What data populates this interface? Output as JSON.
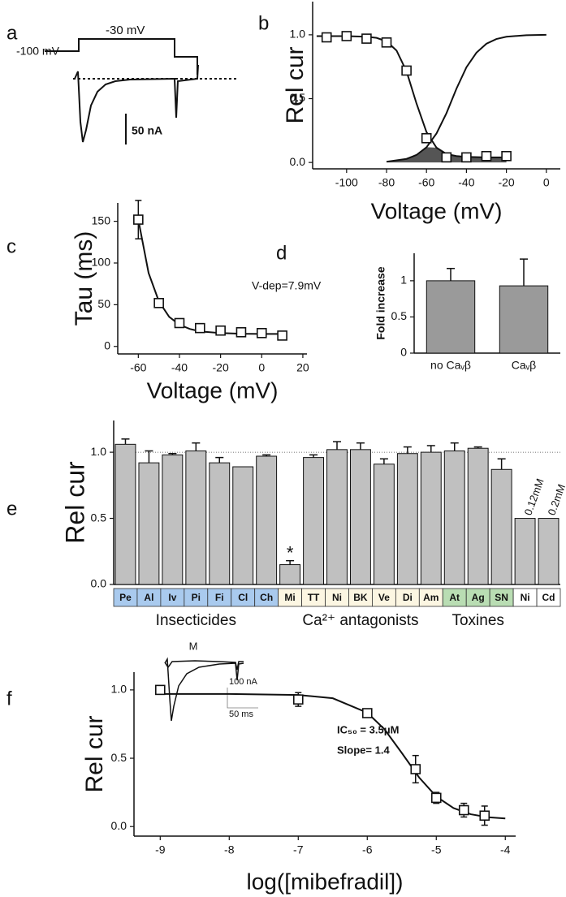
{
  "chart_data": [
    {
      "type": "trace",
      "panel": "a",
      "annotations": [
        "-100 mV",
        "-30 mV",
        "50 nA"
      ]
    },
    {
      "type": "scatter",
      "panel": "b",
      "ylabel": "Rel cur",
      "xlabel": "Voltage (mV)",
      "xlim": [
        -117,
        7
      ],
      "xticks": [
        -100,
        -80,
        -60,
        -40,
        -20,
        0
      ],
      "ylim": [
        -0.05,
        1.26
      ],
      "yticks": [
        {
          "value": 0,
          "label": "0.0"
        },
        {
          "value": 0.5,
          "label": "0.5"
        },
        {
          "value": 1,
          "label": "1.0"
        }
      ],
      "series": [
        {
          "x": [
            -110,
            -100,
            -90,
            -80,
            -70,
            -60
          ],
          "values": [
            0.98,
            0.99,
            0.97,
            0.94,
            0.72,
            0.19
          ]
        },
        {
          "x": [
            -50,
            -40,
            -30,
            -20
          ],
          "values": [
            0.04,
            0.04,
            0.05,
            0.05
          ]
        }
      ],
      "curves": [
        {
          "x": [
            -115,
            -110,
            -100,
            -90,
            -85,
            -80,
            -75,
            -70,
            -65,
            -60,
            -55,
            -50,
            -45,
            -40,
            -30,
            -20
          ],
          "values": [
            0.99,
            0.99,
            0.99,
            0.985,
            0.976,
            0.949,
            0.877,
            0.714,
            0.462,
            0.238,
            0.116,
            0.066,
            0.05,
            0.044,
            0.04,
            0.04
          ]
        },
        {
          "x": [
            -80,
            -70,
            -65,
            -60,
            -55,
            -50,
            -45,
            -40,
            -35,
            -30,
            -25,
            -20,
            -10,
            0
          ],
          "values": [
            0.006,
            0.028,
            0.059,
            0.119,
            0.227,
            0.386,
            0.578,
            0.746,
            0.86,
            0.93,
            0.967,
            0.985,
            0.997,
            1.0
          ]
        }
      ],
      "overlap_color": "#555555"
    },
    {
      "type": "scatter",
      "panel": "c",
      "ylabel": "Tau (ms)",
      "xlabel": "Voltage (mV)",
      "annotations": [
        "V-dep=7.9mV"
      ],
      "xlim": [
        -70,
        22
      ],
      "xticks": [
        -60,
        -40,
        -20,
        0,
        20
      ],
      "ylim": [
        -9,
        172
      ],
      "yticks": [
        0,
        50,
        100,
        150
      ],
      "series": [
        {
          "x": [
            -60,
            -50,
            -40,
            -30,
            -20,
            -10,
            0,
            10
          ],
          "values": [
            152,
            52,
            28,
            22,
            19,
            17,
            16,
            13
          ],
          "errors": [
            23,
            4,
            3,
            3,
            3,
            2,
            2,
            3
          ]
        }
      ],
      "curves": [
        {
          "x": [
            -60,
            -55,
            -50,
            -45,
            -40,
            -35,
            -30,
            -20,
            -10,
            0,
            10
          ],
          "values": [
            152,
            88,
            54,
            35.5,
            26,
            21,
            18,
            16,
            15.2,
            15,
            15
          ]
        }
      ]
    },
    {
      "type": "bar",
      "panel": "d",
      "ylabel": "Fold increase",
      "categories": [
        "no Caᵥβ",
        "Caᵥβ"
      ],
      "values": [
        1.0,
        0.93
      ],
      "errors": [
        0.17,
        0.37
      ],
      "color": "#9a9a9a",
      "ylim": [
        0,
        1.38
      ],
      "yticks": [
        0,
        0.5,
        1
      ]
    },
    {
      "type": "bar",
      "panel": "e",
      "ylabel": "Rel cur",
      "categories": [
        "Pe",
        "Al",
        "Iv",
        "Pi",
        "Fi",
        "Cl",
        "Ch",
        "Mi",
        "TT",
        "Ni",
        "BK",
        "Ve",
        "Di",
        "Am",
        "At",
        "Ag",
        "SN",
        "Ni",
        "Cd"
      ],
      "values": [
        1.06,
        0.92,
        0.98,
        1.01,
        0.92,
        0.89,
        0.97,
        0.15,
        0.96,
        1.02,
        1.02,
        0.91,
        0.99,
        1.0,
        1.01,
        1.03,
        0.87,
        0.5,
        0.5
      ],
      "errors": [
        0.04,
        0.09,
        0.01,
        0.06,
        0.04,
        0,
        0.01,
        0.03,
        0.02,
        0.06,
        0.05,
        0.04,
        0.05,
        0.05,
        0.06,
        0.01,
        0.08,
        0,
        0
      ],
      "color": "#c0c0c0",
      "refline": 1,
      "groups": [
        {
          "name": "Insecticides",
          "color": "#a9caee",
          "span": [
            0,
            6
          ]
        },
        {
          "name": "Ca²⁺ antagonists",
          "color": "#fcf6e2",
          "span": [
            7,
            13
          ]
        },
        {
          "name": "Toxines",
          "color": "#b9ddb3",
          "span": [
            14,
            16
          ]
        }
      ],
      "annotations": [
        "*",
        "0.12mM",
        "0.2mM"
      ],
      "ylim": [
        0,
        1.24
      ],
      "yticks": [
        {
          "value": 0,
          "label": "0.0"
        },
        {
          "value": 0.5,
          "label": "0.5"
        },
        {
          "value": 1,
          "label": "1.0"
        }
      ]
    },
    {
      "type": "scatter",
      "panel": "f",
      "ylabel": "Rel cur",
      "xlabel": "log([mibefradil])",
      "annotations": [
        "IC₅₀ = 3.5μM",
        "Slope= 1.4",
        "M",
        "100 nA",
        "50 ms"
      ],
      "xlim": [
        -9.38,
        -3.85
      ],
      "xticks": [
        -9,
        -8,
        -7,
        -6,
        -5,
        -4
      ],
      "ylim": [
        -0.07,
        1.13
      ],
      "yticks": [
        {
          "value": 0,
          "label": "0.0"
        },
        {
          "value": 0.5,
          "label": "0.5"
        },
        {
          "value": 1,
          "label": "1.0"
        }
      ],
      "series": [
        {
          "x": [
            -9,
            -7,
            -6,
            -5.3,
            -5,
            -4.6,
            -4.3
          ],
          "values": [
            1.0,
            0.93,
            0.83,
            0.42,
            0.21,
            0.12,
            0.08
          ],
          "errors": [
            0,
            0.05,
            0.03,
            0.1,
            0.04,
            0.05,
            0.07
          ]
        }
      ],
      "curves": [
        {
          "x": [
            -9,
            -8,
            -7,
            -6.5,
            -6,
            -5.75,
            -5.5,
            -5.25,
            -5,
            -4.75,
            -4.5,
            -4.25,
            -4
          ],
          "values": [
            0.97,
            0.97,
            0.963,
            0.939,
            0.833,
            0.712,
            0.539,
            0.36,
            0.22,
            0.135,
            0.09,
            0.068,
            0.059
          ]
        }
      ]
    }
  ]
}
